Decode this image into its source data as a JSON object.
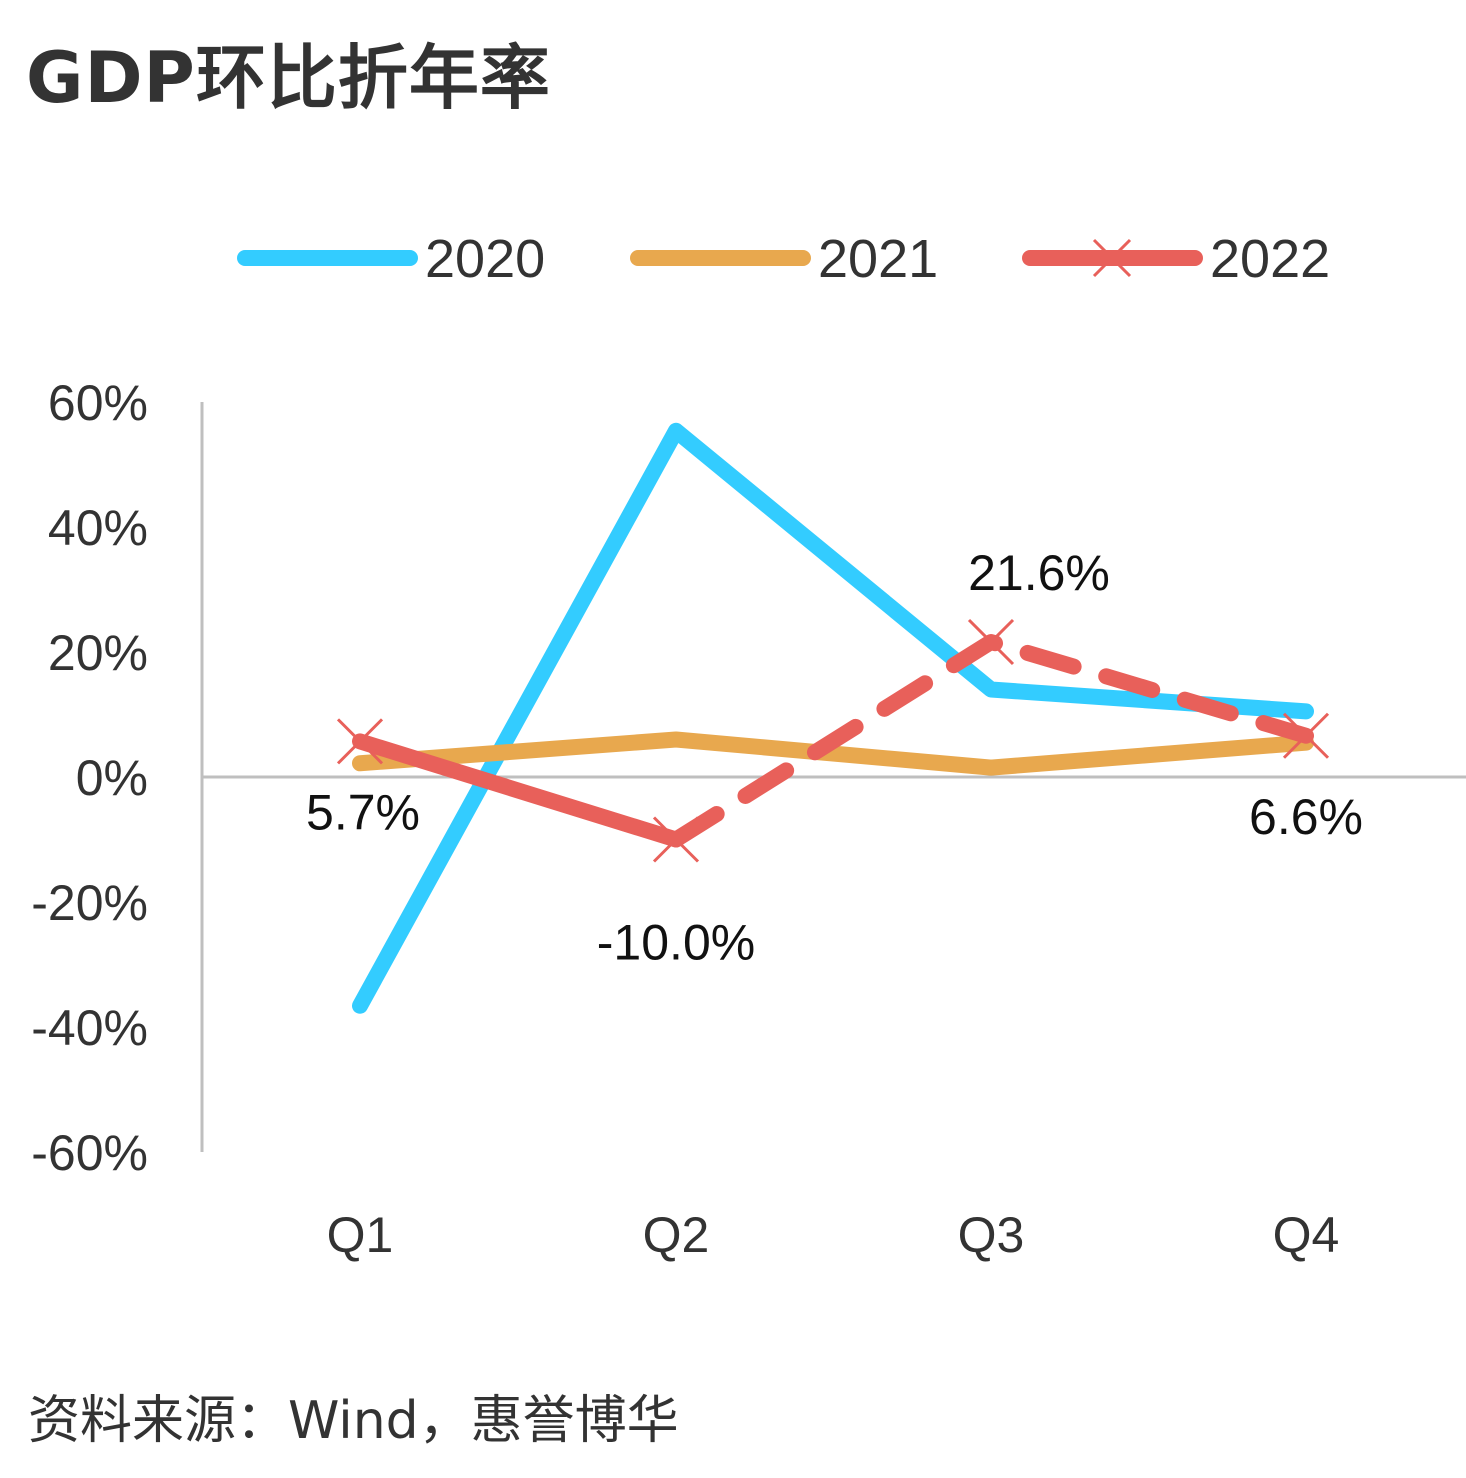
{
  "title": "GDP环比折年率",
  "source": "资料来源：Wind，惠誉博华",
  "chart_data": {
    "type": "line",
    "categories": [
      "Q1",
      "Q2",
      "Q3",
      "Q4"
    ],
    "ylim": [
      -60,
      60
    ],
    "yticks": [
      "60%",
      "40%",
      "20%",
      "0%",
      "-20%",
      "-40%",
      "-60%"
    ],
    "yunit": "%",
    "legend_position": "top",
    "grid": false,
    "series": [
      {
        "name": "2020",
        "values": [
          -36.6,
          55.4,
          14.0,
          10.5
        ],
        "color": "#33ccff",
        "style": "solid",
        "marker": "none"
      },
      {
        "name": "2021",
        "values": [
          2.2,
          6.0,
          1.5,
          5.5
        ],
        "color": "#e8a84e",
        "style": "solid",
        "marker": "none"
      },
      {
        "name": "2022",
        "values": [
          5.7,
          -10.0,
          21.6,
          6.6
        ],
        "color": "#e8605a",
        "style": "dashed-after-first",
        "marker": "x",
        "labels": [
          "5.7%",
          "-10.0%",
          "21.6%",
          "6.6%"
        ]
      }
    ]
  }
}
